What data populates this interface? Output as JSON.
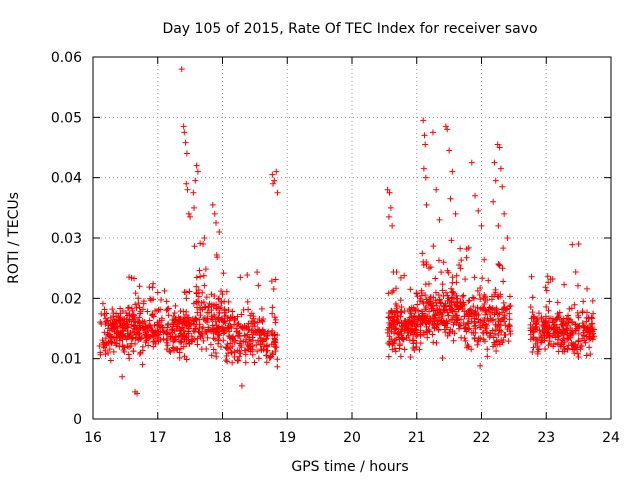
{
  "chart_data": {
    "type": "scatter",
    "title": "Day 105 of 2015, Rate Of TEC Index for receiver savo",
    "xlabel": "GPS time / hours",
    "ylabel": "ROTI / TECUs",
    "xlim": [
      16,
      24
    ],
    "ylim": [
      0,
      0.06
    ],
    "xticks": [
      "16",
      "17",
      "18",
      "19",
      "20",
      "21",
      "22",
      "23",
      "24"
    ],
    "yticks": [
      "0",
      "0.01",
      "0.02",
      "0.03",
      "0.04",
      "0.05",
      "0.06"
    ],
    "grid": true,
    "marker": "+",
    "color": "#ff0000",
    "clusters": [
      {
        "x_start": 16.1,
        "x_end": 16.55,
        "y_base": 0.0145,
        "spread": 0.0045,
        "min": 0.009,
        "max": 0.0195,
        "count": 140
      },
      {
        "x_start": 16.55,
        "x_end": 16.95,
        "y_base": 0.015,
        "spread": 0.005,
        "min": 0.0045,
        "max": 0.024,
        "count": 130
      },
      {
        "x_start": 16.95,
        "x_end": 17.5,
        "y_base": 0.0145,
        "spread": 0.005,
        "min": 0.0075,
        "max": 0.022,
        "count": 170
      },
      {
        "x_start": 17.5,
        "x_end": 18.05,
        "y_base": 0.016,
        "spread": 0.006,
        "min": 0.006,
        "max": 0.03,
        "count": 170
      },
      {
        "x_start": 18.05,
        "x_end": 18.85,
        "y_base": 0.0135,
        "spread": 0.005,
        "min": 0.0055,
        "max": 0.0245,
        "count": 220
      },
      {
        "x_start": 20.55,
        "x_end": 21.0,
        "y_base": 0.0155,
        "spread": 0.005,
        "min": 0.008,
        "max": 0.025,
        "count": 170
      },
      {
        "x_start": 21.0,
        "x_end": 21.65,
        "y_base": 0.0175,
        "spread": 0.006,
        "min": 0.0095,
        "max": 0.03,
        "count": 230
      },
      {
        "x_start": 21.65,
        "x_end": 22.45,
        "y_base": 0.0165,
        "spread": 0.006,
        "min": 0.007,
        "max": 0.0285,
        "count": 230
      },
      {
        "x_start": 22.75,
        "x_end": 23.25,
        "y_base": 0.0145,
        "spread": 0.0045,
        "min": 0.008,
        "max": 0.0245,
        "count": 150
      },
      {
        "x_start": 23.25,
        "x_end": 23.75,
        "y_base": 0.0145,
        "spread": 0.0045,
        "min": 0.008,
        "max": 0.029,
        "count": 150
      }
    ],
    "outliers": [
      {
        "x": 17.37,
        "y": 0.058
      },
      {
        "x": 17.4,
        "y": 0.0485
      },
      {
        "x": 17.41,
        "y": 0.0475
      },
      {
        "x": 17.43,
        "y": 0.0458
      },
      {
        "x": 17.45,
        "y": 0.044
      },
      {
        "x": 17.44,
        "y": 0.039
      },
      {
        "x": 17.46,
        "y": 0.038
      },
      {
        "x": 17.48,
        "y": 0.034
      },
      {
        "x": 17.5,
        "y": 0.0335
      },
      {
        "x": 17.55,
        "y": 0.0375
      },
      {
        "x": 17.58,
        "y": 0.0395
      },
      {
        "x": 17.6,
        "y": 0.042
      },
      {
        "x": 17.62,
        "y": 0.041
      },
      {
        "x": 17.56,
        "y": 0.035
      },
      {
        "x": 17.72,
        "y": 0.03
      },
      {
        "x": 17.85,
        "y": 0.0355
      },
      {
        "x": 17.88,
        "y": 0.034
      },
      {
        "x": 17.9,
        "y": 0.0325
      },
      {
        "x": 17.95,
        "y": 0.031
      },
      {
        "x": 17.7,
        "y": 0.029
      },
      {
        "x": 18.77,
        "y": 0.0405
      },
      {
        "x": 18.8,
        "y": 0.0395
      },
      {
        "x": 18.83,
        "y": 0.041
      },
      {
        "x": 18.85,
        "y": 0.0375
      },
      {
        "x": 18.78,
        "y": 0.039
      },
      {
        "x": 20.55,
        "y": 0.038
      },
      {
        "x": 20.58,
        "y": 0.0375
      },
      {
        "x": 20.6,
        "y": 0.035
      },
      {
        "x": 20.57,
        "y": 0.0335
      },
      {
        "x": 20.62,
        "y": 0.032
      },
      {
        "x": 21.1,
        "y": 0.0495
      },
      {
        "x": 21.12,
        "y": 0.047
      },
      {
        "x": 21.13,
        "y": 0.0455
      },
      {
        "x": 21.11,
        "y": 0.0415
      },
      {
        "x": 21.14,
        "y": 0.04
      },
      {
        "x": 21.25,
        "y": 0.0475
      },
      {
        "x": 21.3,
        "y": 0.038
      },
      {
        "x": 21.45,
        "y": 0.0485
      },
      {
        "x": 21.47,
        "y": 0.048
      },
      {
        "x": 21.5,
        "y": 0.0445
      },
      {
        "x": 21.55,
        "y": 0.041
      },
      {
        "x": 21.52,
        "y": 0.0365
      },
      {
        "x": 21.6,
        "y": 0.034
      },
      {
        "x": 21.15,
        "y": 0.0355
      },
      {
        "x": 21.35,
        "y": 0.033
      },
      {
        "x": 21.85,
        "y": 0.0425
      },
      {
        "x": 21.9,
        "y": 0.037
      },
      {
        "x": 21.95,
        "y": 0.0345
      },
      {
        "x": 22.0,
        "y": 0.032
      },
      {
        "x": 22.25,
        "y": 0.0455
      },
      {
        "x": 22.28,
        "y": 0.045
      },
      {
        "x": 22.2,
        "y": 0.0425
      },
      {
        "x": 22.3,
        "y": 0.0415
      },
      {
        "x": 22.22,
        "y": 0.0395
      },
      {
        "x": 22.32,
        "y": 0.0385
      },
      {
        "x": 22.18,
        "y": 0.036
      },
      {
        "x": 22.35,
        "y": 0.034
      },
      {
        "x": 22.26,
        "y": 0.032
      },
      {
        "x": 22.4,
        "y": 0.03
      },
      {
        "x": 23.5,
        "y": 0.029
      },
      {
        "x": 16.65,
        "y": 0.0045
      },
      {
        "x": 16.68,
        "y": 0.0042
      },
      {
        "x": 16.45,
        "y": 0.007
      },
      {
        "x": 18.3,
        "y": 0.0055
      }
    ]
  }
}
